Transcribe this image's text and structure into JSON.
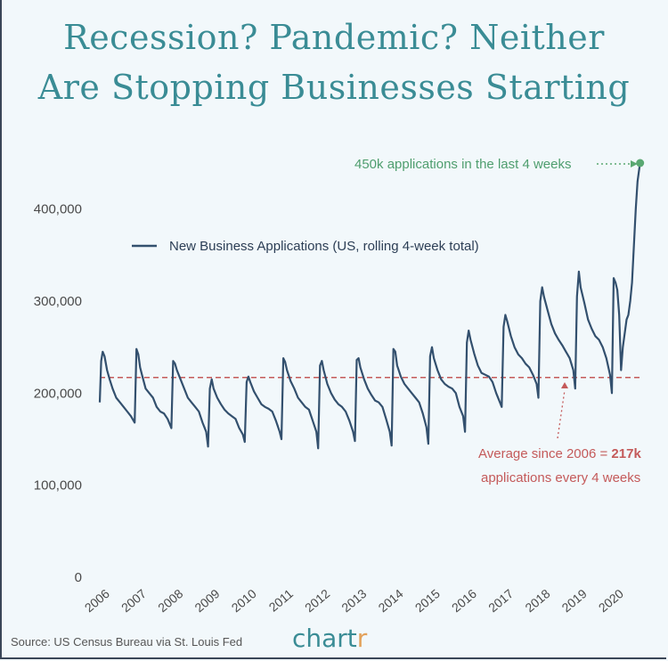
{
  "title_line1": "Recession? Pandemic? Neither",
  "title_line2": "Are Stopping Businesses Starting",
  "source": "Source: US Census Bureau via St. Louis Fed",
  "brand": {
    "main": "chart",
    "accent": "r"
  },
  "colors": {
    "series": "#33506e",
    "average": "#c45a5a",
    "latest": "#5aa872",
    "title": "#3a8c95"
  },
  "annotations": {
    "latest": "450k applications in the last 4 weeks",
    "average_line1_prefix": "Average since 2006 = ",
    "average_line1_bold": "217k",
    "average_line2": "applications every 4 weeks"
  },
  "chart_data": {
    "type": "line",
    "legend": "New Business Applications (US, rolling 4-week total)",
    "legend_position": "top-left",
    "ylim": [
      0,
      450000
    ],
    "yticks": [
      0,
      100000,
      200000,
      300000,
      400000
    ],
    "ytick_labels": [
      "0",
      "100,000",
      "200,000",
      "300,000",
      "400,000"
    ],
    "xlim": [
      2006,
      2020.8
    ],
    "xticks": [
      2006,
      2007,
      2008,
      2009,
      2010,
      2011,
      2012,
      2013,
      2014,
      2015,
      2016,
      2017,
      2018,
      2019,
      2020
    ],
    "xtick_labels": [
      "2006",
      "2007",
      "2008",
      "2009",
      "2010",
      "2011",
      "2012",
      "2013",
      "2014",
      "2015",
      "2016",
      "2017",
      "2018",
      "2019",
      "2020"
    ],
    "average": 217000,
    "latest": {
      "x": 2020.72,
      "y": 450000
    },
    "x": [
      2006.0,
      2006.04,
      2006.08,
      2006.13,
      2006.2,
      2006.27,
      2006.35,
      2006.45,
      2006.55,
      2006.65,
      2006.75,
      2006.85,
      2006.95,
      2007.0,
      2007.05,
      2007.1,
      2007.15,
      2007.25,
      2007.35,
      2007.45,
      2007.55,
      2007.65,
      2007.75,
      2007.85,
      2007.95,
      2008.0,
      2008.05,
      2008.1,
      2008.2,
      2008.3,
      2008.4,
      2008.5,
      2008.6,
      2008.7,
      2008.8,
      2008.9,
      2008.95,
      2009.0,
      2009.05,
      2009.1,
      2009.2,
      2009.3,
      2009.4,
      2009.5,
      2009.6,
      2009.7,
      2009.8,
      2009.9,
      2009.95,
      2010.0,
      2010.05,
      2010.1,
      2010.2,
      2010.3,
      2010.4,
      2010.5,
      2010.6,
      2010.7,
      2010.8,
      2010.9,
      2010.95,
      2011.0,
      2011.05,
      2011.1,
      2011.2,
      2011.3,
      2011.4,
      2011.5,
      2011.6,
      2011.7,
      2011.8,
      2011.9,
      2011.95,
      2012.0,
      2012.05,
      2012.1,
      2012.2,
      2012.3,
      2012.4,
      2012.5,
      2012.6,
      2012.7,
      2012.8,
      2012.9,
      2012.95,
      2013.0,
      2013.05,
      2013.1,
      2013.2,
      2013.3,
      2013.4,
      2013.5,
      2013.6,
      2013.7,
      2013.8,
      2013.9,
      2013.95,
      2014.0,
      2014.05,
      2014.1,
      2014.2,
      2014.3,
      2014.4,
      2014.5,
      2014.6,
      2014.7,
      2014.8,
      2014.9,
      2014.95,
      2015.0,
      2015.05,
      2015.1,
      2015.2,
      2015.3,
      2015.4,
      2015.5,
      2015.6,
      2015.7,
      2015.8,
      2015.9,
      2015.95,
      2016.0,
      2016.05,
      2016.1,
      2016.2,
      2016.3,
      2016.4,
      2016.5,
      2016.6,
      2016.7,
      2016.8,
      2016.9,
      2016.95,
      2017.0,
      2017.05,
      2017.1,
      2017.2,
      2017.3,
      2017.4,
      2017.5,
      2017.6,
      2017.7,
      2017.8,
      2017.9,
      2017.95,
      2018.0,
      2018.05,
      2018.1,
      2018.2,
      2018.3,
      2018.4,
      2018.5,
      2018.6,
      2018.7,
      2018.8,
      2018.9,
      2018.95,
      2019.0,
      2019.05,
      2019.1,
      2019.2,
      2019.3,
      2019.4,
      2019.5,
      2019.6,
      2019.7,
      2019.8,
      2019.9,
      2019.95,
      2020.0,
      2020.05,
      2020.1,
      2020.15,
      2020.2,
      2020.25,
      2020.3,
      2020.35,
      2020.4,
      2020.45,
      2020.5,
      2020.55,
      2020.6,
      2020.65,
      2020.7,
      2020.72
    ],
    "y": [
      190000,
      235000,
      245000,
      240000,
      225000,
      215000,
      205000,
      195000,
      190000,
      185000,
      180000,
      175000,
      168000,
      248000,
      242000,
      228000,
      220000,
      205000,
      200000,
      195000,
      185000,
      180000,
      178000,
      172000,
      162000,
      235000,
      232000,
      225000,
      215000,
      205000,
      195000,
      190000,
      185000,
      180000,
      168000,
      158000,
      142000,
      205000,
      215000,
      205000,
      195000,
      188000,
      182000,
      178000,
      175000,
      172000,
      162000,
      155000,
      147000,
      212000,
      218000,
      212000,
      202000,
      195000,
      188000,
      185000,
      183000,
      180000,
      170000,
      158000,
      150000,
      238000,
      234000,
      225000,
      213000,
      205000,
      195000,
      190000,
      185000,
      182000,
      170000,
      158000,
      140000,
      230000,
      235000,
      225000,
      210000,
      200000,
      193000,
      188000,
      185000,
      180000,
      170000,
      158000,
      148000,
      236000,
      238000,
      228000,
      215000,
      205000,
      198000,
      192000,
      190000,
      185000,
      172000,
      158000,
      143000,
      248000,
      245000,
      230000,
      218000,
      210000,
      205000,
      200000,
      195000,
      190000,
      178000,
      163000,
      145000,
      240000,
      250000,
      238000,
      225000,
      215000,
      210000,
      207000,
      205000,
      200000,
      185000,
      175000,
      158000,
      255000,
      268000,
      258000,
      243000,
      230000,
      222000,
      220000,
      218000,
      212000,
      200000,
      190000,
      185000,
      272000,
      285000,
      278000,
      262000,
      250000,
      242000,
      238000,
      232000,
      228000,
      220000,
      210000,
      195000,
      300000,
      315000,
      305000,
      290000,
      275000,
      265000,
      258000,
      252000,
      245000,
      238000,
      225000,
      205000,
      305000,
      332000,
      315000,
      298000,
      280000,
      270000,
      262000,
      258000,
      250000,
      238000,
      220000,
      200000,
      325000,
      320000,
      312000,
      285000,
      225000,
      250000,
      265000,
      280000,
      285000,
      300000,
      320000,
      360000,
      400000,
      430000,
      445000,
      450000
    ]
  }
}
